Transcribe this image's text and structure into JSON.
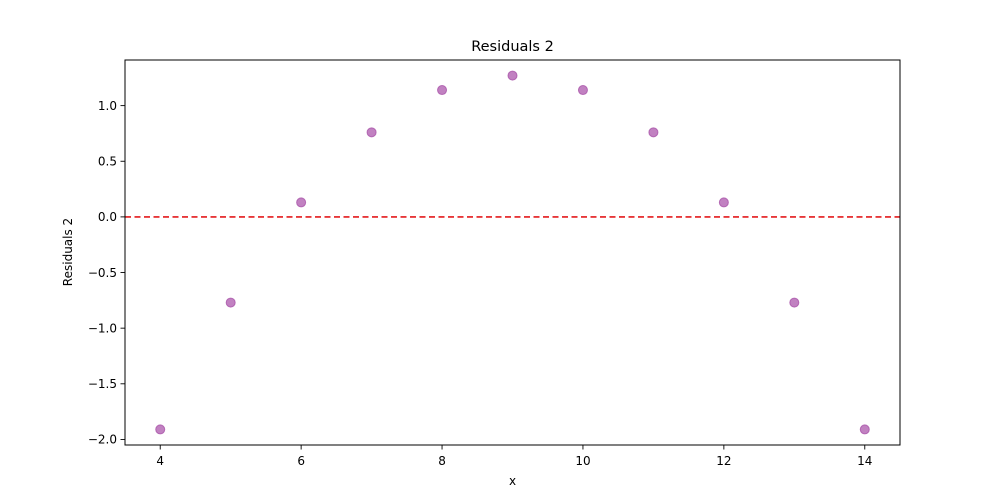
{
  "chart_data": {
    "type": "scatter",
    "title": "Residuals 2",
    "xlabel": "x",
    "ylabel": "Residuals 2",
    "xlim": [
      3.5,
      14.5
    ],
    "ylim": [
      -2.05,
      1.41
    ],
    "xticks": [
      4,
      6,
      8,
      10,
      12,
      14
    ],
    "xtick_labels": [
      "4",
      "6",
      "8",
      "10",
      "12",
      "14"
    ],
    "yticks": [
      -2.0,
      -1.5,
      -1.0,
      -0.5,
      0.0,
      0.5,
      1.0
    ],
    "ytick_labels": [
      "−2.0",
      "−1.5",
      "−1.0",
      "−0.5",
      "0.0",
      "0.5",
      "1.0"
    ],
    "grid": false,
    "series": [
      {
        "x": [
          4,
          5,
          6,
          7,
          8,
          9,
          10,
          11,
          12,
          13,
          14
        ],
        "y": [
          -1.91,
          -0.77,
          0.13,
          0.76,
          1.14,
          1.27,
          1.14,
          0.76,
          0.13,
          -0.77,
          -1.91
        ],
        "color": "#a64ca6"
      }
    ],
    "reference_line": {
      "y": 0.0,
      "style": "dashed",
      "color": "#e41a1c"
    }
  }
}
